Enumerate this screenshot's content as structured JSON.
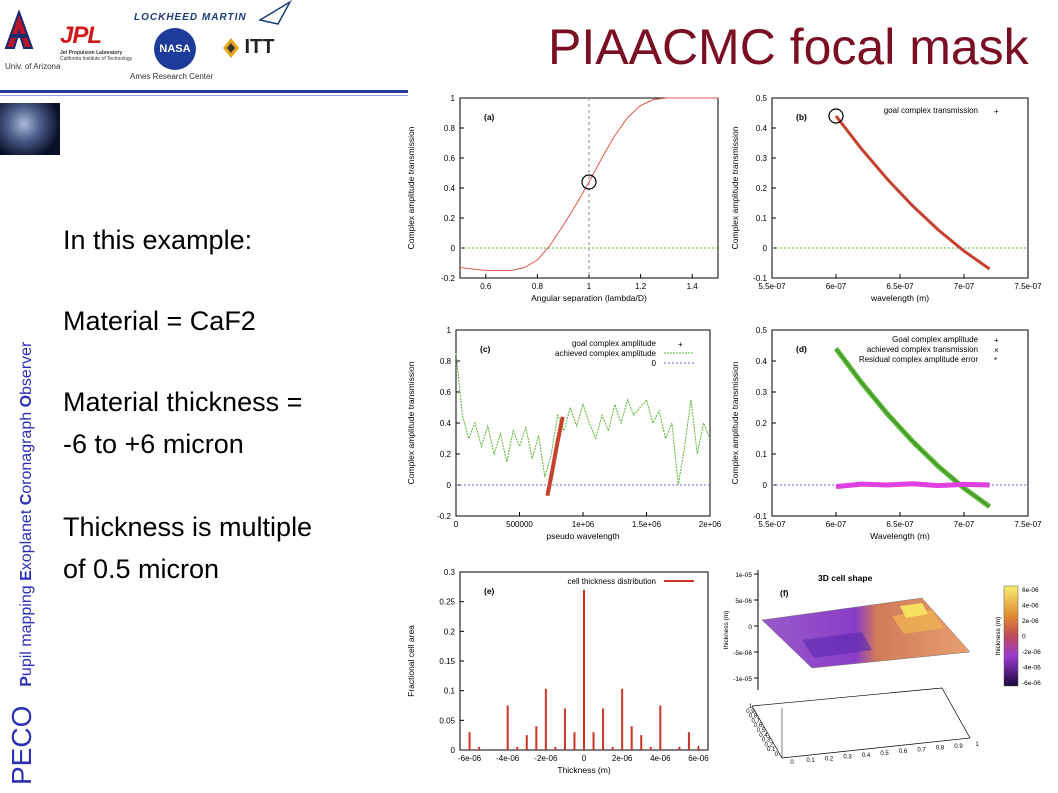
{
  "header": {
    "title": "PIAACMC focal mask",
    "logo_captions": {
      "arizona": "Univ. of Arizona",
      "ames": "Ames Research  Center"
    },
    "logos": {
      "arizona": "A",
      "jpl": "JPL",
      "jpl_sub1": "Jet Propulsion Laboratory",
      "jpl_sub2": "California Institute of Technology",
      "lockheed": "LOCKHEED MARTIN",
      "nasa": "NASA",
      "itt": "ITT"
    }
  },
  "sidebar": {
    "peco": "PECO",
    "vertical_words": [
      {
        "first": "P",
        "rest": "upil mapping "
      },
      {
        "first": "E",
        "rest": "xoplanet "
      },
      {
        "first": "C",
        "rest": "oronagraph "
      },
      {
        "first": "O",
        "rest": "bserver"
      }
    ]
  },
  "body": {
    "line1": "In this example:",
    "line2": "Material = CaF2",
    "line3": "Material thickness =",
    "line4": "-6 to +6 micron",
    "line5": "Thickness is multiple",
    "line6": "of 0.5 micron"
  },
  "chart_data": [
    {
      "type": "line",
      "panel": "(a)",
      "xlabel": "Angular separation (lambda/D)",
      "ylabel": "Complex amplitude transmission",
      "xlim": [
        0.5,
        1.5
      ],
      "ylim": [
        -0.2,
        1
      ],
      "xticks": [
        "0.6",
        "0.8",
        "1",
        "1.2",
        "1.4"
      ],
      "yticks": [
        "-0.2",
        "0",
        "0.2",
        "0.4",
        "0.6",
        "0.8",
        "1"
      ],
      "x": [
        0.5,
        0.6,
        0.7,
        0.75,
        0.8,
        0.85,
        0.9,
        0.95,
        1.0,
        1.05,
        1.1,
        1.15,
        1.2,
        1.25,
        1.3,
        1.4,
        1.5
      ],
      "y": [
        -0.13,
        -0.15,
        -0.15,
        -0.13,
        -0.08,
        0.02,
        0.15,
        0.29,
        0.44,
        0.6,
        0.75,
        0.87,
        0.95,
        0.99,
        1.0,
        1.0,
        1.0
      ],
      "marker": [
        1.0,
        0.44
      ]
    },
    {
      "type": "line",
      "panel": "(b)",
      "xlabel": "wavelength (m)",
      "ylabel": "Complex amplitude transmission",
      "xlim": [
        5.5e-07,
        7.5e-07
      ],
      "ylim": [
        -0.1,
        0.5
      ],
      "xticks": [
        "5.5e-07",
        "6e-07",
        "6.5e-07",
        "7e-07",
        "7.5e-07"
      ],
      "yticks": [
        "-0.1",
        "0",
        "0.1",
        "0.2",
        "0.3",
        "0.4",
        "0.5"
      ],
      "series": [
        {
          "name": "goal complex transmission",
          "x": [
            6e-07,
            6.2e-07,
            6.4e-07,
            6.6e-07,
            6.8e-07,
            7e-07,
            7.2e-07
          ],
          "y": [
            0.44,
            0.33,
            0.23,
            0.14,
            0.06,
            -0.01,
            -0.07
          ]
        }
      ],
      "marker": [
        6e-07,
        0.44
      ]
    },
    {
      "type": "line",
      "panel": "(c)",
      "xlabel": "pseudo wavelength",
      "ylabel": "Complex amplitude transmission",
      "xlim": [
        0,
        2000000
      ],
      "ylim": [
        -0.2,
        1
      ],
      "xticks": [
        "0",
        "500000",
        "1e+06",
        "1.5e+06",
        "2e+06"
      ],
      "yticks": [
        "-0.2",
        "0",
        "0.2",
        "0.4",
        "0.6",
        "0.8",
        "1"
      ],
      "series": [
        {
          "name": "goal complex amplitude",
          "x": [
            720000,
            760000,
            800000,
            840000
          ],
          "y": [
            -0.07,
            0.1,
            0.28,
            0.44
          ]
        },
        {
          "name": "achieved complex amplitude",
          "x": [
            0,
            50000,
            100000,
            150000,
            200000,
            250000,
            300000,
            350000,
            400000,
            450000,
            500000,
            550000,
            600000,
            650000,
            700000,
            750000,
            800000,
            850000,
            900000,
            950000,
            1000000,
            1050000,
            1100000,
            1150000,
            1200000,
            1250000,
            1300000,
            1350000,
            1400000,
            1450000,
            1500000,
            1550000,
            1600000,
            1650000,
            1700000,
            1750000,
            1800000,
            1850000,
            1900000,
            1950000,
            2000000
          ],
          "y": [
            0.85,
            0.45,
            0.3,
            0.4,
            0.25,
            0.38,
            0.2,
            0.33,
            0.15,
            0.35,
            0.25,
            0.37,
            0.17,
            0.32,
            0.05,
            0.2,
            0.45,
            0.35,
            0.5,
            0.38,
            0.52,
            0.4,
            0.3,
            0.45,
            0.35,
            0.52,
            0.4,
            0.55,
            0.45,
            0.5,
            0.55,
            0.4,
            0.48,
            0.3,
            0.4,
            0.0,
            0.25,
            0.55,
            0.2,
            0.4,
            0.3
          ]
        },
        {
          "name": "0",
          "x": [
            0,
            2000000
          ],
          "y": [
            0,
            0
          ]
        }
      ]
    },
    {
      "type": "line",
      "panel": "(d)",
      "xlabel": "Wavelength (m)",
      "ylabel": "Complex amplitude transmission",
      "xlim": [
        5.5e-07,
        7.5e-07
      ],
      "ylim": [
        -0.1,
        0.5
      ],
      "xticks": [
        "5.5e-07",
        "6e-07",
        "6.5e-07",
        "7e-07",
        "7.5e-07"
      ],
      "yticks": [
        "-0.1",
        "0",
        "0.1",
        "0.2",
        "0.3",
        "0.4",
        "0.5"
      ],
      "series": [
        {
          "name": "Goal complex amplitude",
          "x": [
            6e-07,
            6.2e-07,
            6.4e-07,
            6.6e-07,
            6.8e-07,
            7e-07,
            7.2e-07
          ],
          "y": [
            0.44,
            0.33,
            0.23,
            0.14,
            0.06,
            -0.01,
            -0.07
          ]
        },
        {
          "name": "achieved complex transmission",
          "x": [
            6e-07,
            6.2e-07,
            6.4e-07,
            6.6e-07,
            6.8e-07,
            7e-07,
            7.2e-07
          ],
          "y": [
            0.44,
            0.33,
            0.23,
            0.14,
            0.06,
            -0.01,
            -0.07
          ]
        },
        {
          "name": "Residual complex amplitude error",
          "x": [
            6e-07,
            6.2e-07,
            6.4e-07,
            6.6e-07,
            6.8e-07,
            7e-07,
            7.2e-07
          ],
          "y": [
            -0.005,
            0.003,
            0.0,
            0.004,
            -0.002,
            0.002,
            0.0
          ]
        }
      ]
    },
    {
      "type": "bar",
      "panel": "(e)",
      "xlabel": "Thickness (m)",
      "ylabel": "Fractional cell area",
      "xlim": [
        -6.5e-06,
        6.5e-06
      ],
      "ylim": [
        0,
        0.3
      ],
      "xticks": [
        "-6e-06",
        "-4e-06",
        "-2e-06",
        "0",
        "2e-06",
        "4e-06",
        "6e-06"
      ],
      "yticks": [
        "0",
        "0.05",
        "0.1",
        "0.15",
        "0.2",
        "0.25",
        "0.3"
      ],
      "series": [
        {
          "name": "cell thickness distribution",
          "x": [
            -6e-06,
            -5.5e-06,
            -4e-06,
            -3.5e-06,
            -3e-06,
            -2.5e-06,
            -2e-06,
            -1.5e-06,
            -1e-06,
            -5e-07,
            0,
            5e-07,
            1e-06,
            1.5e-06,
            2e-06,
            2.5e-06,
            3e-06,
            3.5e-06,
            4e-06,
            5e-06,
            5.5e-06,
            6e-06
          ],
          "values": [
            0.03,
            0.005,
            0.075,
            0.005,
            0.025,
            0.04,
            0.103,
            0.005,
            0.07,
            0.03,
            0.27,
            0.03,
            0.07,
            0.005,
            0.103,
            0.04,
            0.025,
            0.005,
            0.075,
            0.005,
            0.03,
            0.005
          ]
        }
      ]
    },
    {
      "type": "surface",
      "panel": "(f)",
      "title": "3D cell shape",
      "zlabel": "thickness (m)",
      "colorbar_label": "thickness (m)",
      "zticks": [
        "1e-05",
        "5e-06",
        "0",
        "-5e-06",
        "-1e-05"
      ],
      "colorbar_ticks": [
        "6e-06",
        "4e-06",
        "2e-06",
        "0",
        "-2e-06",
        "-4e-06",
        "-6e-06"
      ],
      "xticks": [
        "0",
        "0.1",
        "0.2",
        "0.3",
        "0.4",
        "0.5",
        "0.6",
        "0.7",
        "0.8",
        "0.9",
        "1"
      ],
      "yticks": [
        "0",
        "0.1",
        "0.2",
        "0.3",
        "0.4",
        "0.5",
        "0.6",
        "0.7",
        "0.8",
        "0.9",
        "1"
      ]
    }
  ],
  "colors": {
    "title": "#7a0f24",
    "vertical": "#2a2fb5",
    "line_red": "#e0574f",
    "goal_red": "#c8412f",
    "green": "#58b535",
    "zero_blue": "#6f6fd8",
    "magenta": "#e040e0",
    "bar_red": "#cc3322"
  }
}
